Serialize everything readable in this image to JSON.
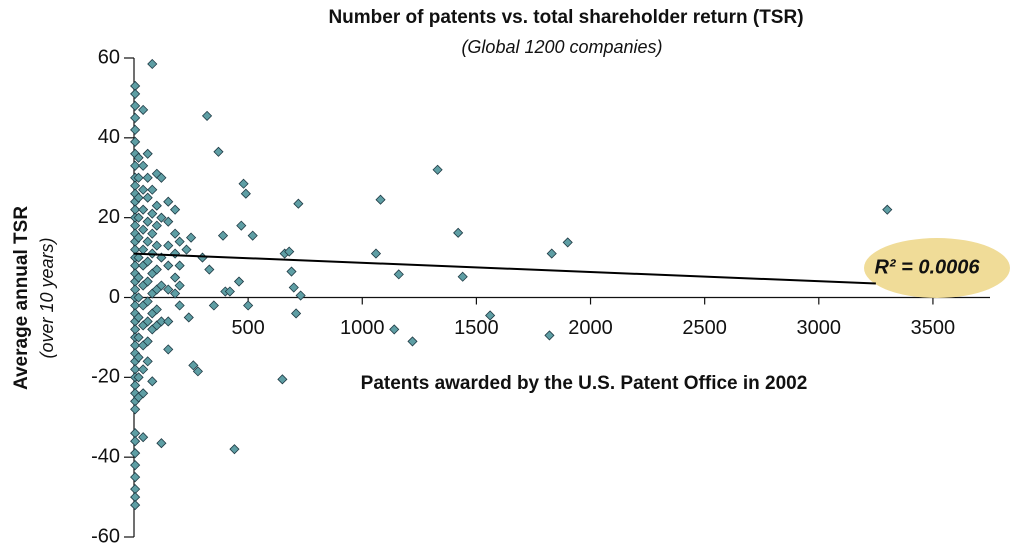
{
  "chart_data": {
    "type": "scatter",
    "title": "Number of patents vs. total shareholder return (TSR)",
    "subtitle": "(Global 1200 companies)",
    "x_label": "Patents awarded by the U.S. Patent Office in 2002",
    "y_label": "Average annual TSR",
    "y_label_sub": "(over 10 years)",
    "annotation": "R² = 0.0006",
    "color": "#5e9ea4",
    "xlim": [
      0,
      3750
    ],
    "ylim": [
      -60,
      60
    ],
    "xticks": [
      500,
      1000,
      1500,
      2000,
      2500,
      3000,
      3500
    ],
    "yticks": [
      -60,
      -40,
      -20,
      0,
      20,
      40,
      60
    ],
    "trendline": {
      "x": [
        0,
        3250
      ],
      "y": [
        11,
        3.5
      ]
    },
    "x": [
      5,
      5,
      5,
      5,
      5,
      5,
      5,
      5,
      5,
      5,
      5,
      5,
      5,
      5,
      5,
      5,
      5,
      5,
      5,
      5,
      5,
      5,
      5,
      5,
      5,
      5,
      5,
      5,
      5,
      5,
      5,
      5,
      5,
      5,
      5,
      5,
      5,
      5,
      5,
      5,
      5,
      5,
      5,
      5,
      5,
      5,
      20,
      20,
      20,
      20,
      20,
      20,
      20,
      20,
      20,
      20,
      20,
      20,
      20,
      40,
      40,
      40,
      40,
      40,
      40,
      40,
      40,
      40,
      40,
      40,
      40,
      40,
      40,
      60,
      60,
      60,
      60,
      60,
      60,
      60,
      60,
      60,
      60,
      60,
      80,
      80,
      80,
      80,
      80,
      80,
      80,
      80,
      80,
      80,
      100,
      100,
      100,
      100,
      100,
      100,
      100,
      100,
      120,
      120,
      120,
      120,
      120,
      120,
      150,
      150,
      150,
      150,
      150,
      150,
      150,
      180,
      180,
      180,
      180,
      180,
      200,
      200,
      200,
      200,
      230,
      240,
      250,
      260,
      280,
      300,
      320,
      330,
      350,
      370,
      390,
      400,
      420,
      440,
      460,
      480,
      490,
      500,
      520,
      470,
      650,
      660,
      680,
      690,
      700,
      710,
      720,
      730,
      1060,
      1080,
      1140,
      1160,
      1220,
      1330,
      1420,
      1440,
      1560,
      1820,
      1830,
      1900,
      3300
    ],
    "values": [
      53,
      51,
      48,
      45,
      42,
      39,
      36,
      33,
      30,
      28,
      26,
      24,
      22,
      20,
      18,
      16,
      14,
      12,
      10,
      8,
      6,
      4,
      2,
      0,
      -2,
      -4,
      -6,
      -8,
      -10,
      -12,
      -14,
      -16,
      -18,
      -20,
      -22,
      -24,
      -26,
      -28,
      -34,
      -36,
      -39,
      -42,
      -45,
      -48,
      -50,
      -52,
      35,
      30,
      25,
      20,
      15,
      10,
      5,
      0,
      -5,
      -10,
      -15,
      -20,
      -25,
      47,
      33,
      27,
      22,
      17,
      12,
      8,
      3,
      -2,
      -7,
      -12,
      -18,
      -24,
      -35,
      36,
      30,
      25,
      19,
      14,
      9,
      4,
      -1,
      -6,
      -11,
      -16,
      58.5,
      27,
      21,
      16,
      11,
      6,
      1,
      -4,
      -8,
      -21,
      31,
      23,
      18,
      13,
      7,
      2,
      -3,
      -7,
      -36.5,
      30,
      20,
      10,
      3,
      -6,
      24,
      19,
      13,
      8,
      2,
      -6,
      -13,
      22,
      16,
      11,
      5,
      1,
      14,
      8,
      3,
      -2,
      12,
      -5,
      15,
      -17,
      -18.5,
      10,
      45.5,
      7,
      -2,
      36.5,
      15.5,
      1.5,
      1.5,
      -38,
      4,
      28.5,
      26,
      -2,
      15.5,
      18,
      -20.5,
      11,
      11.5,
      6.5,
      2.5,
      -4,
      23.5,
      0.5,
      11,
      24.5,
      -8,
      5.8,
      -11,
      32,
      16.2,
      5.2,
      -4.5,
      -9.5,
      11,
      13.8,
      22
    ]
  }
}
